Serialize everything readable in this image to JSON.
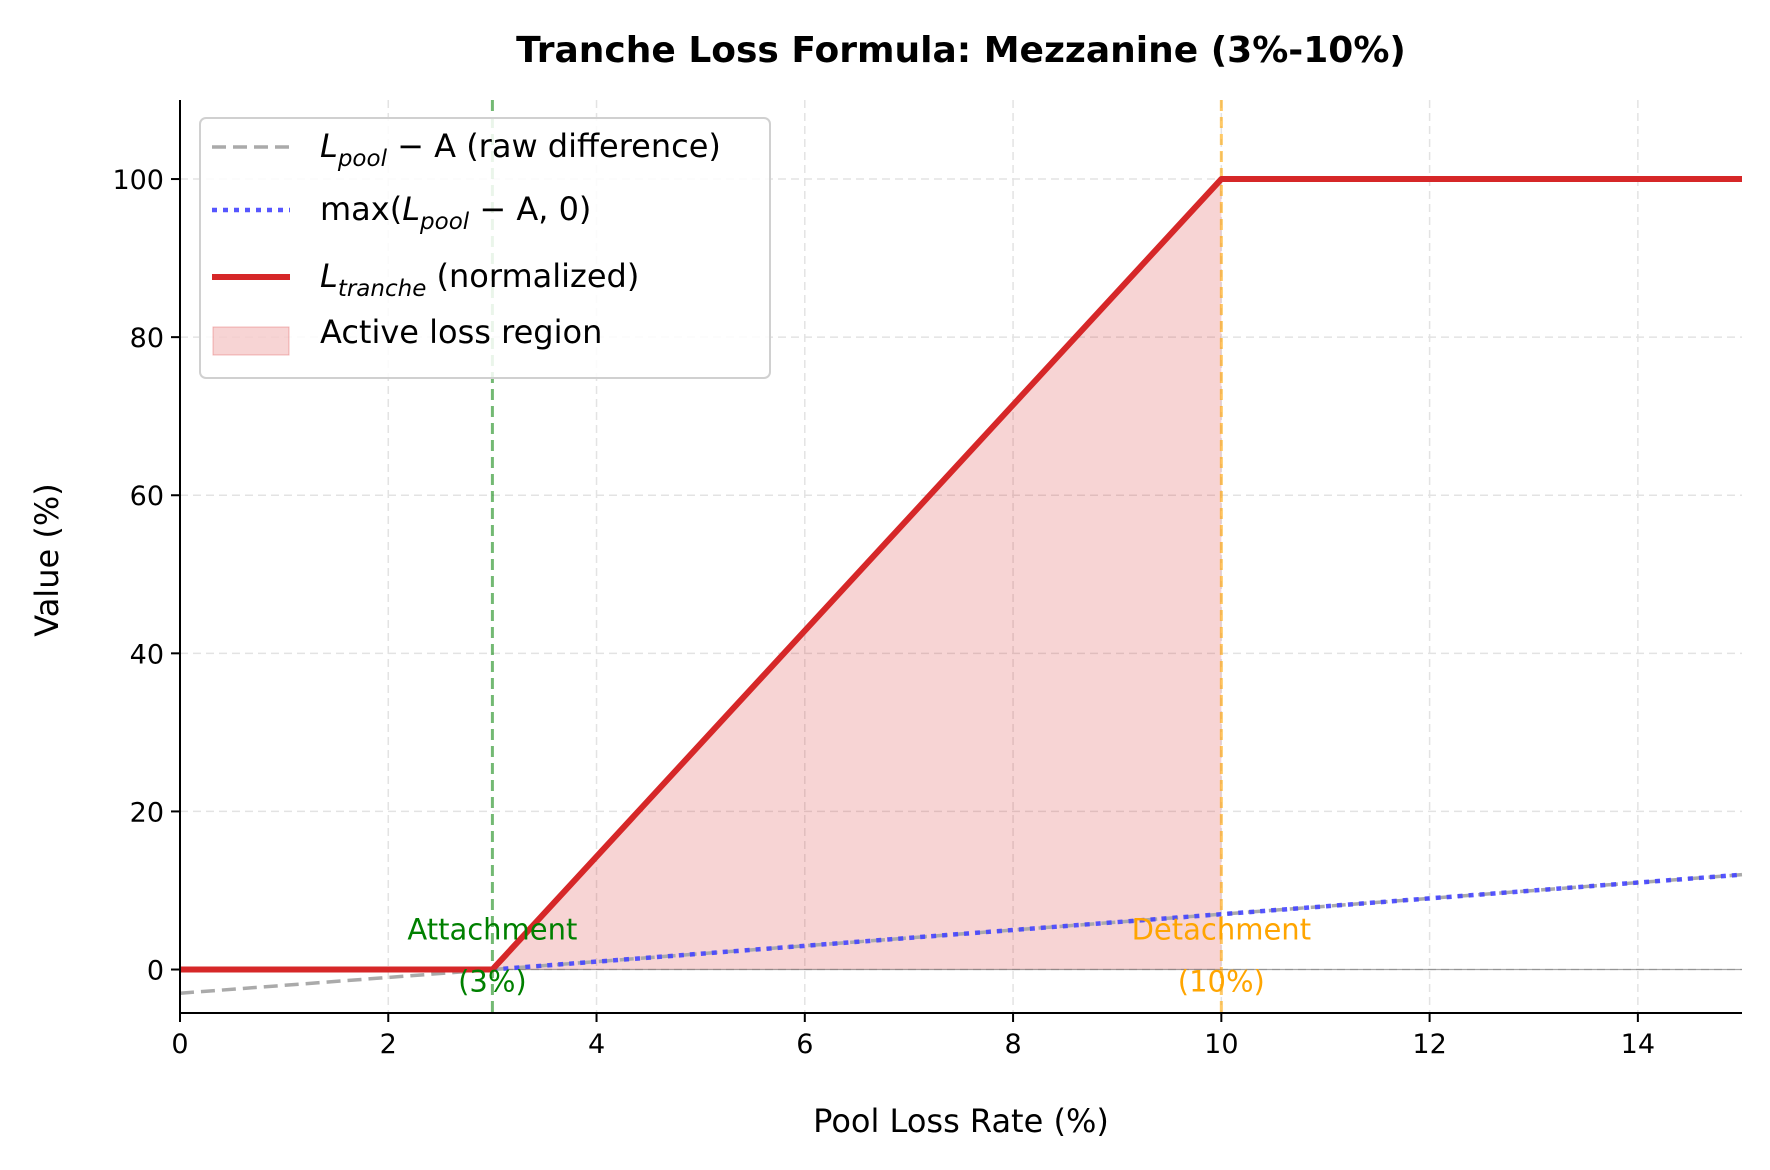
{
  "chart_data": {
    "type": "line",
    "title": "Tranche Loss Formula: Mezzanine (3%-10%)",
    "xlabel": "Pool Loss Rate (%)",
    "ylabel": "Value (%)",
    "xlim": [
      0,
      15
    ],
    "ylim": [
      -5.5,
      110
    ],
    "xticks": [
      0,
      2,
      4,
      6,
      8,
      10,
      12,
      14
    ],
    "yticks": [
      0,
      20,
      40,
      60,
      80,
      100
    ],
    "grid": true,
    "legend_position": "top-left",
    "attachment": 3,
    "detachment": 10,
    "series": [
      {
        "name": "L_pool − A (raw difference)",
        "style": "dashed",
        "color": "#aaaaaa",
        "x": [
          0,
          15
        ],
        "y": [
          -3,
          12
        ]
      },
      {
        "name": "max(L_pool − A, 0)",
        "style": "dotted",
        "color": "#4444ff",
        "x": [
          3,
          15
        ],
        "y": [
          0,
          12
        ]
      },
      {
        "name": "L_tranche (normalized)",
        "style": "solid",
        "color": "#d62728",
        "x": [
          0,
          3,
          10,
          15
        ],
        "y": [
          0,
          0,
          100,
          100
        ]
      }
    ],
    "fill": {
      "name": "Active loss region",
      "color": "#d62728",
      "x": [
        3,
        10
      ],
      "y": [
        0,
        100
      ]
    },
    "legend": [
      {
        "main": "L",
        "sub": "pool",
        "rest": " − A (raw difference)"
      },
      {
        "pre": "max(",
        "main": "L",
        "sub": "pool",
        "rest": " − A, 0)"
      },
      {
        "main": "L",
        "sub": "tranche",
        "rest": " (normalized)"
      },
      {
        "rest": "Active loss region"
      }
    ],
    "annotations": [
      {
        "line1": "Attachment",
        "line2": "(3%)",
        "x": 3,
        "color": "#008000"
      },
      {
        "line1": "Detachment",
        "line2": "(10%)",
        "x": 10,
        "color": "#ffa500"
      }
    ]
  }
}
